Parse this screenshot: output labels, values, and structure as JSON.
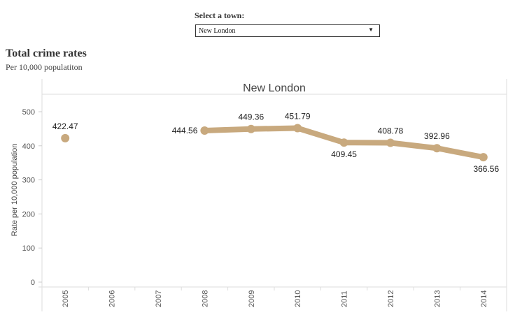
{
  "selector": {
    "label": "Select a town:",
    "value": "New London",
    "arrow_icon": "triangle-down-icon"
  },
  "header": {
    "title": "Total crime rates",
    "subtitle": "Per 10,000 populatiton"
  },
  "chart_data": {
    "type": "line",
    "title": "New London",
    "ylabel": "Rate per 10,000 population",
    "xlabel": "",
    "categories": [
      "2005",
      "2006",
      "2007",
      "2008",
      "2009",
      "2010",
      "2011",
      "2012",
      "2013",
      "2014"
    ],
    "series": [
      {
        "values": [
          422.47,
          null,
          null,
          444.56,
          449.36,
          451.79,
          409.45,
          408.78,
          392.96,
          366.56
        ]
      }
    ],
    "data_labels": [
      "422.47",
      "",
      "",
      "444.56",
      "449.36",
      "451.79",
      "409.45",
      "408.78",
      "392.96",
      "366.56"
    ],
    "yticks": [
      0,
      100,
      200,
      300,
      400,
      500
    ],
    "ylim": [
      0,
      540
    ],
    "grid": false,
    "color": "#c8a97e"
  }
}
